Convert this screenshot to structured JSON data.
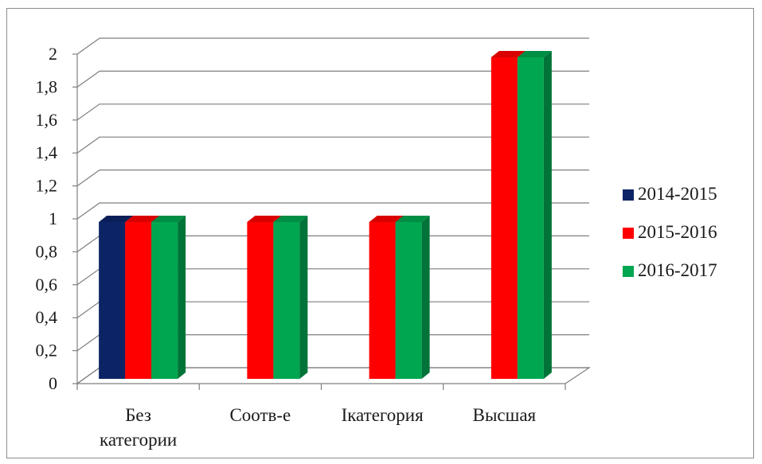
{
  "chart_data": {
    "type": "bar",
    "style": "3d-clustered-column",
    "categories": [
      [
        "Без",
        "категории"
      ],
      [
        "Соотв-е"
      ],
      [
        "Iкатегория"
      ],
      [
        "Высшая"
      ]
    ],
    "series": [
      {
        "name": "2014-2015",
        "color": "#0c2466",
        "values": [
          1,
          0,
          0,
          0
        ]
      },
      {
        "name": "2015-2016",
        "color": "#ff0000",
        "values": [
          1,
          1,
          1,
          2
        ]
      },
      {
        "name": "2016-2017",
        "color": "#00a650",
        "values": [
          1,
          1,
          1,
          2
        ]
      }
    ],
    "y_ticks": [
      "0",
      "0,2",
      "0,4",
      "0,6",
      "0,8",
      "1",
      "1,2",
      "1,4",
      "1,6",
      "1,8",
      "2"
    ],
    "ylim": [
      0,
      2
    ],
    "grid": true,
    "legend_position": "right",
    "title": "",
    "xlabel": "",
    "ylabel": ""
  }
}
